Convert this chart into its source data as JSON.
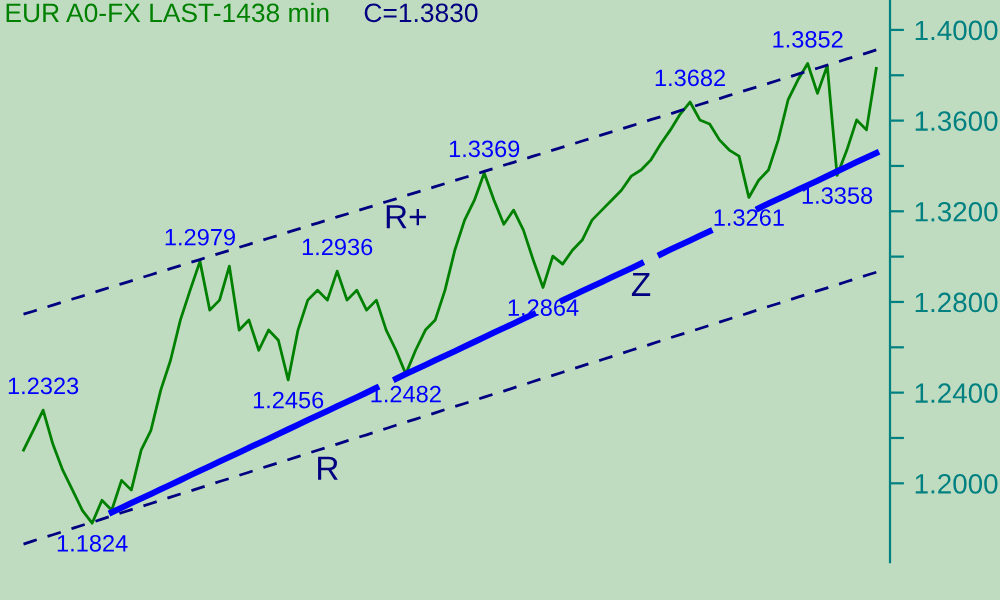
{
  "chart_data": {
    "type": "line",
    "title": "EUR A0-FX LAST-1438 min",
    "subtitle": "C=1.3830",
    "categories": [
      null,
      null,
      null,
      null,
      null,
      null,
      null,
      null,
      null,
      null,
      null,
      null,
      null,
      null,
      null,
      null,
      null,
      null,
      null,
      null,
      null,
      null,
      null,
      null,
      null,
      null,
      null,
      null,
      null,
      null,
      null,
      null,
      null,
      null,
      null,
      null,
      null,
      null,
      null,
      null,
      null,
      null,
      null,
      null,
      null,
      null,
      null,
      null,
      null,
      null,
      null,
      null,
      null,
      null,
      null,
      null,
      null,
      null,
      null,
      null,
      null,
      null,
      null,
      null,
      null,
      null,
      null,
      null,
      null,
      null,
      null,
      null,
      null,
      null,
      null,
      null,
      null,
      null,
      null,
      null,
      null,
      null,
      null,
      null,
      null,
      null,
      null,
      null
    ],
    "ylim": [
      1.1652,
      1.4132
    ],
    "yticks": [
      {
        "value": 1.2,
        "label": "1.2000"
      },
      {
        "value": 1.22,
        "label": null
      },
      {
        "value": 1.24,
        "label": "1.2400"
      },
      {
        "value": 1.26,
        "label": null
      },
      {
        "value": 1.28,
        "label": "1.2800"
      },
      {
        "value": 1.3,
        "label": null
      },
      {
        "value": 1.32,
        "label": "1.3200"
      },
      {
        "value": 1.34,
        "label": null
      },
      {
        "value": 1.36,
        "label": "1.3600"
      },
      {
        "value": 1.38,
        "label": null
      },
      {
        "value": 1.4,
        "label": "1.4000"
      }
    ],
    "tick_labels": "y",
    "series": [
      {
        "color": "#008000",
        "line_style": "solid",
        "values": [
          1.2146,
          1.2234,
          1.2323,
          1.2172,
          1.2058,
          1.197,
          1.1881,
          1.1824,
          1.1925,
          1.1881,
          1.2013,
          1.197,
          1.2146,
          1.2234,
          1.2411,
          1.2543,
          1.272,
          1.2852,
          1.2979,
          1.2764,
          1.2808,
          1.2958,
          1.2676,
          1.272,
          1.2587,
          1.2676,
          1.2631,
          1.2456,
          1.2676,
          1.2808,
          1.2852,
          1.2808,
          1.2936,
          1.2808,
          1.2852,
          1.2764,
          1.2808,
          1.2676,
          1.2587,
          1.2482,
          1.2587,
          1.2676,
          1.272,
          1.2852,
          1.3028,
          1.3161,
          1.3249,
          1.3369,
          1.3249,
          1.3143,
          1.3205,
          1.3117,
          1.2985,
          1.2864,
          1.3002,
          1.2967,
          1.3028,
          1.3073,
          1.3161,
          1.3205,
          1.3249,
          1.3293,
          1.3355,
          1.3382,
          1.3426,
          1.3497,
          1.3559,
          1.3629,
          1.3682,
          1.3603,
          1.3585,
          1.3515,
          1.347,
          1.3443,
          1.3261,
          1.3337,
          1.3382,
          1.3515,
          1.3691,
          1.3779,
          1.3852,
          1.372,
          1.3842,
          1.3358,
          1.347,
          1.3603,
          1.3559,
          1.383
        ]
      },
      {
        "name": "R+",
        "color": "#000080",
        "line_style": "dashed",
        "values": [
          1.2746,
          1.2759,
          1.2773,
          1.2786,
          1.28,
          1.2813,
          1.2826,
          1.284,
          1.2853,
          1.2867,
          1.288,
          1.2893,
          1.2907,
          1.292,
          1.2934,
          1.2947,
          1.296,
          1.2974,
          1.2987,
          1.3001,
          1.3014,
          1.3027,
          1.3041,
          1.3054,
          1.3068,
          1.3081,
          1.3094,
          1.3108,
          1.3121,
          1.3135,
          1.3148,
          1.3161,
          1.3175,
          1.3188,
          1.3202,
          1.3215,
          1.3228,
          1.3242,
          1.3255,
          1.3269,
          1.3282,
          1.3295,
          1.3309,
          1.3322,
          1.3336,
          1.3349,
          1.3362,
          1.3376,
          1.3389,
          1.3403,
          1.3416,
          1.3429,
          1.3443,
          1.3456,
          1.347,
          1.3483,
          1.3496,
          1.351,
          1.3523,
          1.3537,
          1.355,
          1.3563,
          1.3577,
          1.359,
          1.3604,
          1.3617,
          1.363,
          1.3644,
          1.3657,
          1.3671,
          1.3684,
          1.3697,
          1.3711,
          1.3724,
          1.3738,
          1.3751,
          1.3764,
          1.3778,
          1.3791,
          1.3805,
          1.3818,
          1.3831,
          1.3845,
          1.3858,
          1.3872,
          1.3885,
          1.3898,
          1.3912
        ]
      },
      {
        "name": "R",
        "color": "#000080",
        "line_style": "dashed",
        "values": [
          1.1732,
          1.1746,
          1.176,
          1.1773,
          1.1787,
          1.1801,
          1.1815,
          1.1828,
          1.1842,
          1.1856,
          1.187,
          1.1884,
          1.1897,
          1.1911,
          1.1925,
          1.1939,
          1.1953,
          1.1966,
          1.198,
          1.1994,
          1.2008,
          1.2021,
          1.2035,
          1.2049,
          1.2063,
          1.2077,
          1.209,
          1.2104,
          1.2118,
          1.2132,
          1.2146,
          1.2159,
          1.2173,
          1.2187,
          1.2201,
          1.2214,
          1.2228,
          1.2242,
          1.2256,
          1.227,
          1.2283,
          1.2297,
          1.2311,
          1.2325,
          1.2339,
          1.2352,
          1.2366,
          1.238,
          1.2394,
          1.2407,
          1.2421,
          1.2435,
          1.2449,
          1.2463,
          1.2476,
          1.249,
          1.2504,
          1.2518,
          1.2532,
          1.2545,
          1.2559,
          1.2573,
          1.2587,
          1.26,
          1.2614,
          1.2628,
          1.2642,
          1.2656,
          1.2669,
          1.2683,
          1.2697,
          1.2711,
          1.2725,
          1.2738,
          1.2752,
          1.2766,
          1.278,
          1.2793,
          1.2807,
          1.2821,
          1.2835,
          1.2849,
          1.2862,
          1.2876,
          1.289,
          1.2904,
          1.2918,
          1.2931
        ]
      },
      {
        "name": "Z",
        "color": "#0000ff",
        "line_style": "solid",
        "values": [
          null,
          null,
          null,
          null,
          null,
          null,
          null,
          null,
          null,
          1.1872,
          1.1892,
          1.1913,
          1.1933,
          1.1953,
          1.1974,
          1.1994,
          1.2014,
          1.2035,
          1.2055,
          1.2075,
          1.2096,
          1.2116,
          1.2136,
          1.2157,
          1.2177,
          1.2197,
          1.2218,
          1.2238,
          1.2258,
          1.2279,
          1.2299,
          1.2319,
          1.234,
          1.236,
          1.238,
          1.24,
          1.2421,
          null,
          1.2461,
          1.2482,
          1.2502,
          1.2522,
          1.2543,
          1.2563,
          1.2583,
          1.2604,
          1.2624,
          1.2644,
          1.2665,
          1.2685,
          1.2705,
          1.2726,
          1.2746,
          null,
          null,
          1.2807,
          1.2827,
          1.2848,
          1.2868,
          1.2888,
          1.2909,
          1.2929,
          1.2949,
          1.297,
          null,
          1.301,
          1.3031,
          1.3051,
          1.3071,
          1.3092,
          1.3112,
          null,
          null,
          null,
          null,
          1.3213,
          1.3234,
          1.3254,
          1.3274,
          1.3295,
          1.3315,
          1.3335,
          1.3356,
          1.3376,
          1.3396,
          1.3417,
          1.3437,
          1.3457
        ]
      }
    ],
    "annotations": [
      {
        "text": "1.2323",
        "y": 1.2323
      },
      {
        "text": "1.1824",
        "y": 1.1824
      },
      {
        "text": "1.2979",
        "y": 1.2979
      },
      {
        "text": "1.2456",
        "y": 1.2456
      },
      {
        "text": "1.2936",
        "y": 1.2936
      },
      {
        "text": "1.2482",
        "y": 1.2482
      },
      {
        "text": "1.3369",
        "y": 1.3369
      },
      {
        "text": "1.2864",
        "y": 1.2864
      },
      {
        "text": "1.3682",
        "y": 1.3682
      },
      {
        "text": "1.3261",
        "y": 1.3261
      },
      {
        "text": "1.3852",
        "y": 1.3852
      },
      {
        "text": "1.3358",
        "y": 1.3358
      }
    ]
  }
}
